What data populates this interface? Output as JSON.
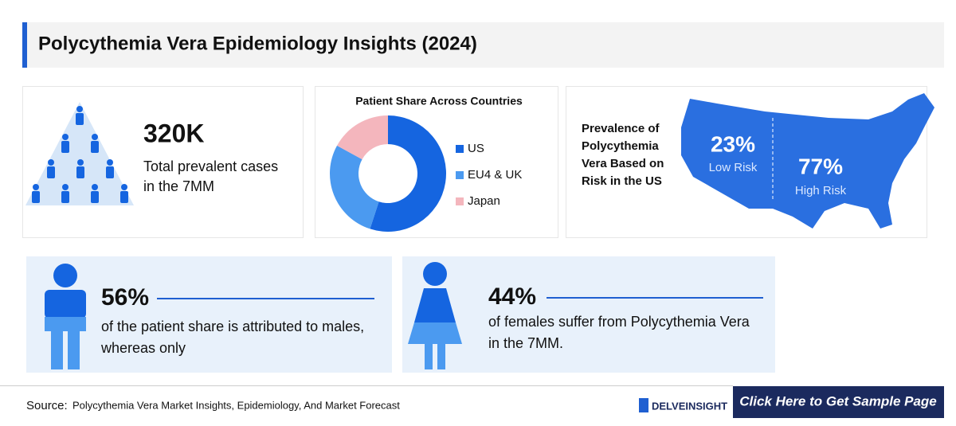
{
  "header": {
    "title": "Polycythemia Vera Epidemiology Insights (2024)"
  },
  "prevalence": {
    "value": "320K",
    "text_lines": [
      "Total prevalent cases",
      "in the 7MM"
    ]
  },
  "patient_share": {
    "type": "donut",
    "title": "Patient Share Across Countries",
    "categories": [
      "US",
      "EU4 & UK",
      "Japan"
    ],
    "values": [
      55,
      28,
      17
    ],
    "colors": [
      "#1565e0",
      "#4b9af0",
      "#f4b6bd"
    ]
  },
  "risk": {
    "title_lines": [
      "Prevalence of",
      "Polycythemia",
      "Vera Based on",
      "Risk in the US"
    ],
    "low": {
      "value": "23%",
      "label": "Low Risk"
    },
    "high": {
      "value": "77%",
      "label": "High Risk"
    }
  },
  "male": {
    "value": "56%",
    "text_lines": [
      "of the patient share is attributed to males,",
      "whereas only"
    ]
  },
  "female": {
    "value": "44%",
    "text_lines": [
      "of females suffer from Polycythemia Vera",
      "in the 7MM."
    ]
  },
  "footer": {
    "source_label": "Source:",
    "source": "Polycythemia Vera Market Insights, Epidemiology, And Market Forecast",
    "logo": "DELVEINSIGHT",
    "button": "Click Here to Get Sample Page"
  }
}
